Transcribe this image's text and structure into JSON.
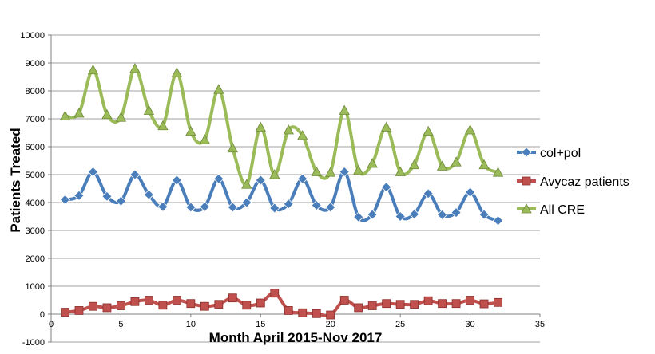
{
  "chart_data": {
    "type": "line",
    "title": "",
    "xlabel": "Month April 2015-Nov 2017",
    "ylabel": "Patients Treated",
    "xlim": [
      0,
      35
    ],
    "ylim": [
      -1000,
      10000
    ],
    "x_ticks": [
      "0",
      "5",
      "10",
      "15",
      "20",
      "25",
      "30",
      "35"
    ],
    "y_ticks": [
      "-1000",
      "0",
      "1000",
      "2000",
      "3000",
      "4000",
      "5000",
      "6000",
      "7000",
      "8000",
      "9000",
      "10000"
    ],
    "grid": true,
    "legend_position": "right",
    "x": [
      1,
      2,
      3,
      4,
      5,
      6,
      7,
      8,
      9,
      10,
      11,
      12,
      13,
      14,
      15,
      16,
      17,
      18,
      19,
      20,
      21,
      22,
      23,
      24,
      25,
      26,
      27,
      28,
      29,
      30,
      31,
      32
    ],
    "series": [
      {
        "name": "col+pol",
        "color": "#4a7ebb",
        "marker": "diamond",
        "values": [
          4100,
          4250,
          5100,
          4220,
          4050,
          5000,
          4280,
          3850,
          4800,
          3830,
          3850,
          4850,
          3830,
          4000,
          4800,
          3800,
          3950,
          4850,
          3900,
          3830,
          5100,
          3480,
          3570,
          4550,
          3500,
          3580,
          4320,
          3560,
          3640,
          4370,
          3570,
          3350
        ]
      },
      {
        "name": "Avycaz patients",
        "color": "#c0504d",
        "marker": "square",
        "values": [
          70,
          130,
          280,
          230,
          300,
          450,
          500,
          320,
          500,
          380,
          280,
          350,
          580,
          320,
          400,
          750,
          130,
          50,
          20,
          -30,
          500,
          230,
          300,
          380,
          350,
          350,
          480,
          380,
          380,
          500,
          370,
          420
        ]
      },
      {
        "name": "All CRE",
        "color": "#9bbb59",
        "marker": "triangle",
        "values": [
          7100,
          7200,
          8750,
          7150,
          7050,
          8800,
          7300,
          6750,
          8650,
          6550,
          6250,
          8050,
          5950,
          4650,
          6700,
          5000,
          6600,
          6400,
          5100,
          5080,
          7300,
          5150,
          5400,
          6700,
          5100,
          5350,
          6550,
          5300,
          5450,
          6600,
          5350,
          5080
        ]
      }
    ]
  }
}
